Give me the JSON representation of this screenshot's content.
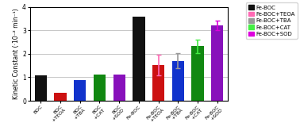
{
  "chart_data": {
    "type": "bar",
    "categories": [
      "BOC",
      "BOC\n+TEOA",
      "BOC\n+TBA",
      "BOC\n+CAT",
      "BOC\n+SOD",
      "Fe-BOC",
      "Fe-BOC\n+TEOA",
      "Fe-BOC\n+TBA",
      "Fe-BOC\n+CAT",
      "Fe-BOC\n+SOD"
    ],
    "values": [
      1.08,
      0.33,
      0.88,
      1.12,
      1.12,
      3.58,
      1.52,
      1.7,
      2.32,
      3.22
    ],
    "errors": [
      0.0,
      0.0,
      0.0,
      0.0,
      0.0,
      0.0,
      0.45,
      0.32,
      0.28,
      0.2
    ],
    "error_colors": [
      null,
      null,
      null,
      null,
      null,
      null,
      "#ff69b4",
      "#999999",
      "#44ee44",
      "#dd00dd"
    ],
    "colors": [
      "#111111",
      "#cc1111",
      "#1133cc",
      "#118811",
      "#8811bb",
      "#111111",
      "#cc1111",
      "#1133cc",
      "#118811",
      "#8811bb"
    ],
    "ylabel": "Kinetic Constant (·10⁻² min⁻¹)",
    "ylim": [
      0,
      4
    ],
    "yticks": [
      0,
      1,
      2,
      3,
      4
    ],
    "grid": true,
    "legend": "upper right",
    "legend_entries": [
      {
        "name": "Fe-BOC",
        "color": "#111111"
      },
      {
        "name": "Fe-BOC+TEOA",
        "color": "#ff69b4"
      },
      {
        "name": "Fe-BOC+TBA",
        "color": "#999999"
      },
      {
        "name": "Fe-BOC+CAT",
        "color": "#44ee44"
      },
      {
        "name": "Fe-BOC+SOD",
        "color": "#dd00dd"
      }
    ]
  }
}
